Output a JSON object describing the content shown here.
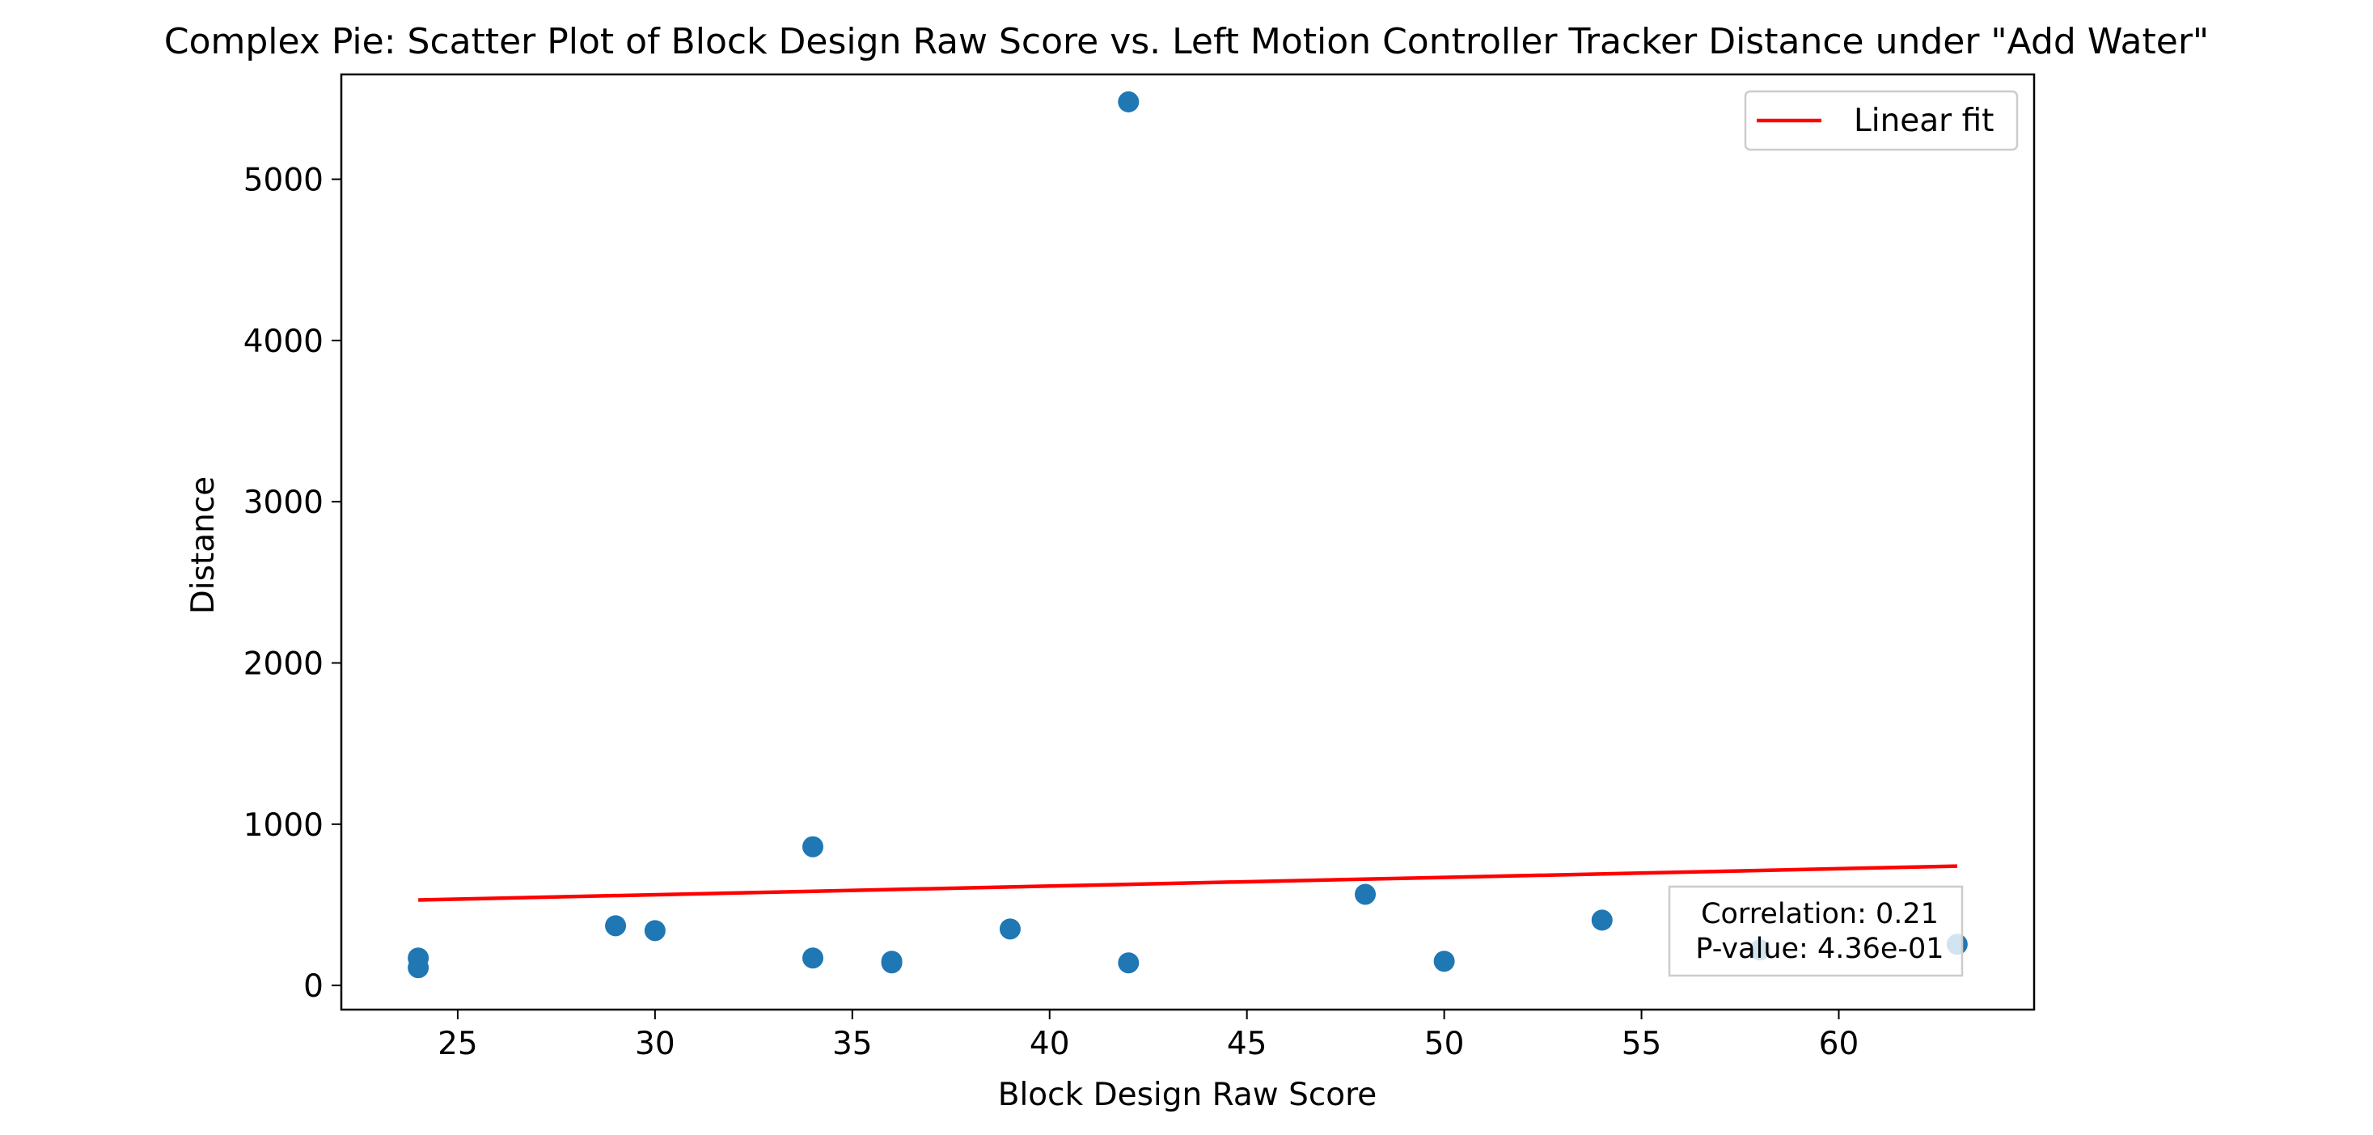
{
  "chart_data": {
    "type": "scatter",
    "title": "Complex Pie: Scatter Plot of Block Design Raw Score vs. Left Motion Controller Tracker Distance under \"Add Water\"",
    "xlabel": "Block Design Raw Score",
    "ylabel": "Distance",
    "xlim": [
      22.05,
      64.95
    ],
    "ylim": [
      -150,
      5650
    ],
    "xticks": [
      25,
      30,
      35,
      40,
      45,
      50,
      55,
      60
    ],
    "yticks": [
      0,
      1000,
      2000,
      3000,
      4000,
      5000
    ],
    "grid": false,
    "legend_position": "top-right",
    "series": [
      {
        "name": "",
        "kind": "points",
        "color": "#1f77b4",
        "points": [
          {
            "x": 24,
            "y": 170
          },
          {
            "x": 24,
            "y": 110
          },
          {
            "x": 29,
            "y": 370
          },
          {
            "x": 30,
            "y": 340
          },
          {
            "x": 34,
            "y": 860
          },
          {
            "x": 34,
            "y": 170
          },
          {
            "x": 36,
            "y": 150
          },
          {
            "x": 36,
            "y": 140
          },
          {
            "x": 39,
            "y": 350
          },
          {
            "x": 42,
            "y": 5480
          },
          {
            "x": 42,
            "y": 140
          },
          {
            "x": 48,
            "y": 565
          },
          {
            "x": 50,
            "y": 150
          },
          {
            "x": 54,
            "y": 405
          },
          {
            "x": 58,
            "y": 220
          },
          {
            "x": 63,
            "y": 255
          }
        ]
      },
      {
        "name": "Linear fit",
        "kind": "line",
        "color": "#ff0000",
        "points": [
          {
            "x": 24,
            "y": 530
          },
          {
            "x": 63,
            "y": 740
          }
        ]
      }
    ],
    "annotations": [
      "Correlation: 0.21",
      "P-value: 4.36e-01"
    ]
  }
}
